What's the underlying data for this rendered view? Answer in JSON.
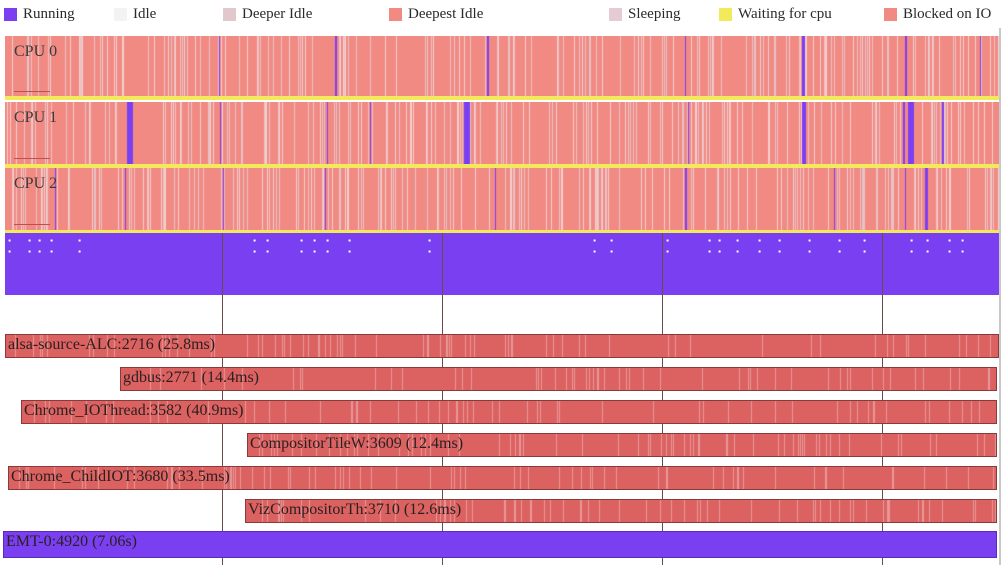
{
  "legend": [
    {
      "label": "Running",
      "color": "#7b3ff2"
    },
    {
      "label": "Idle",
      "color": "#f3f3f3"
    },
    {
      "label": "Deeper Idle",
      "color": "#e0c8cc"
    },
    {
      "label": "Deepest Idle",
      "color": "#f28a84"
    },
    {
      "label": "Sleeping",
      "color": "#e4cbd4"
    },
    {
      "label": "Waiting for cpu",
      "color": "#f2ea5a"
    },
    {
      "label": "Blocked on IO",
      "color": "#f28a84"
    }
  ],
  "cpus": [
    {
      "label": "CPU 0"
    },
    {
      "label": "CPU 1"
    },
    {
      "label": "CPU 2"
    }
  ],
  "threads": [
    {
      "label": "alsa-source-ALC:2716 (25.8ms)",
      "state": "blocked"
    },
    {
      "label": "gdbus:2771 (14.4ms)",
      "state": "blocked"
    },
    {
      "label": "Chrome_IOThread:3582 (40.9ms)",
      "state": "blocked"
    },
    {
      "label": "CompositorTileW:3609 (12.4ms)",
      "state": "blocked"
    },
    {
      "label": "Chrome_ChildIOT:3680 (33.5ms)",
      "state": "blocked"
    },
    {
      "label": "VizCompositorTh:3710 (12.6ms)",
      "state": "blocked"
    },
    {
      "label": "EMT-0:4920 (7.06s)",
      "state": "running"
    }
  ],
  "colors": {
    "running": "#7b3ff2",
    "deepest_idle": "#f28a84",
    "blocked": "#dc6262",
    "waiting": "#f2ea5a",
    "grid": "#6b4a4a"
  }
}
